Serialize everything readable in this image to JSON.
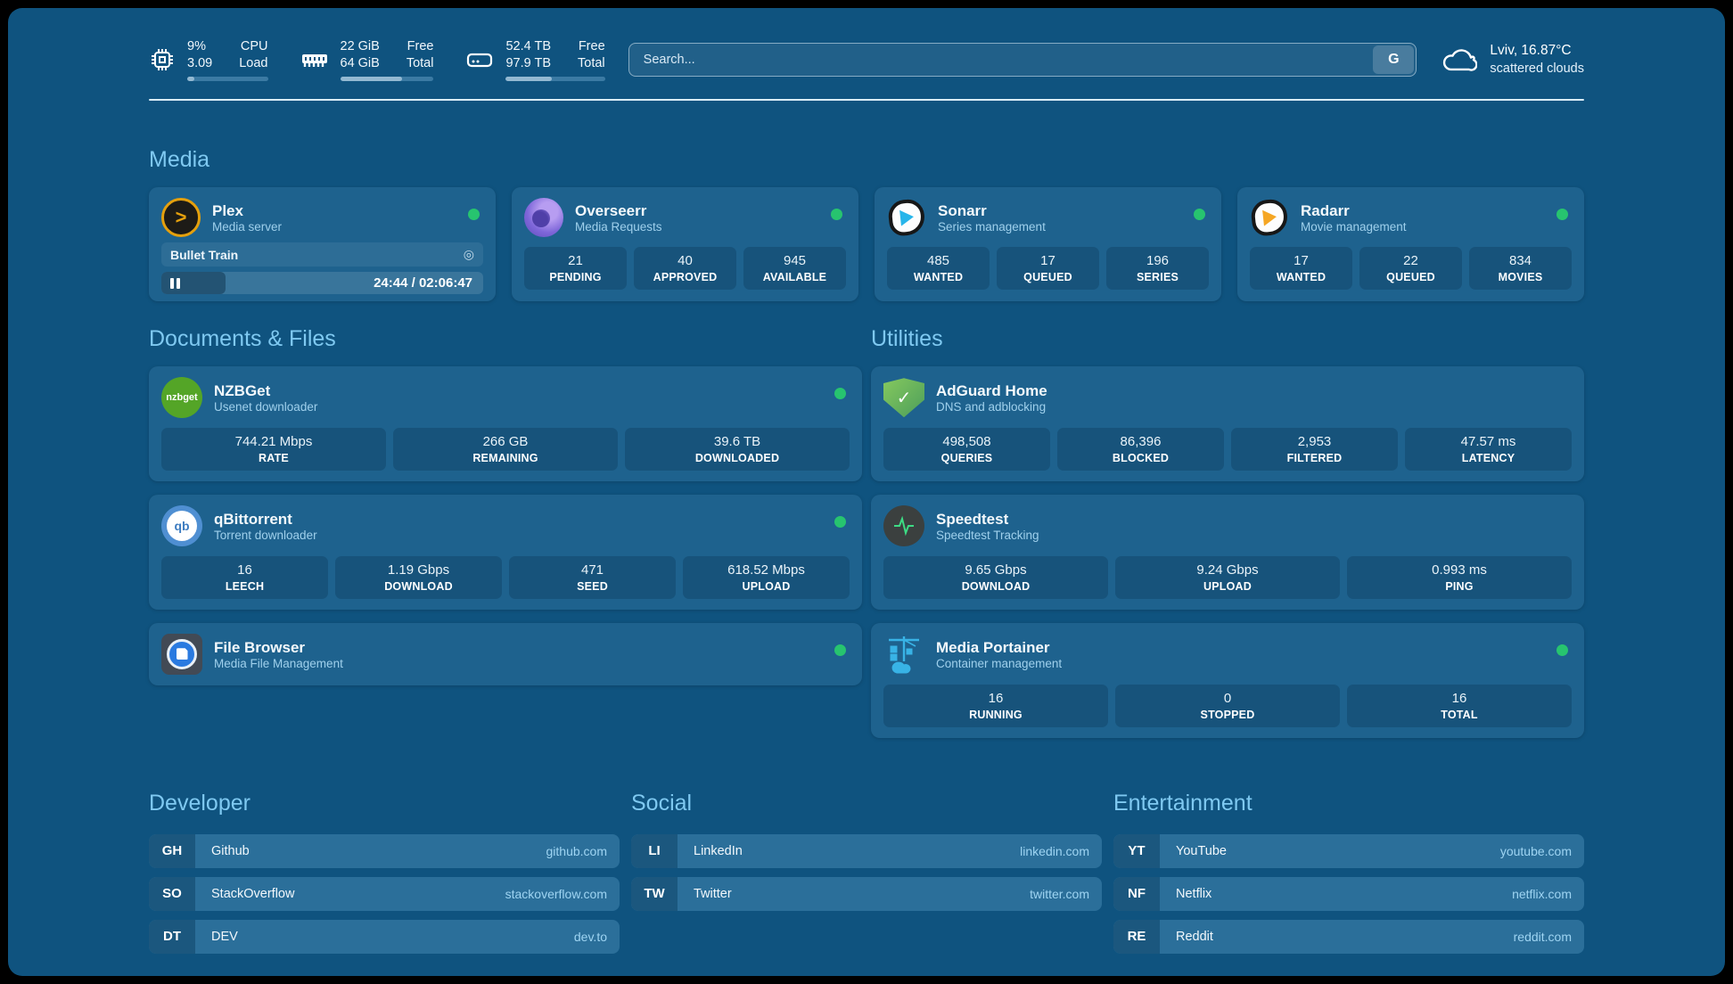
{
  "colors": {
    "background": "#0F537F",
    "card": "#1E628E",
    "status_online": "#27C46F",
    "section_title": "#7FC9F1",
    "link_url": "#9ED4F2"
  },
  "topbar": {
    "cpu": {
      "value1": "9%",
      "value2": "3.09",
      "label1": "CPU",
      "label2": "Load",
      "progress": 9
    },
    "memory": {
      "value1": "22 GiB",
      "value2": "64 GiB",
      "label1": "Free",
      "label2": "Total",
      "progress": 66
    },
    "disk": {
      "value1": "52.4 TB",
      "value2": "97.9 TB",
      "label1": "Free",
      "label2": "Total",
      "progress": 46
    },
    "search": {
      "placeholder": "Search...",
      "engine_button": "G"
    },
    "weather": {
      "location": "Lviv, 16.87°C",
      "condition": "scattered clouds"
    }
  },
  "media": {
    "title": "Media",
    "plex": {
      "name": "Plex",
      "subtitle": "Media server",
      "now_playing": "Bullet Train",
      "elapsed": "24:44",
      "separator": " / ",
      "duration": "02:06:47",
      "progress": 20
    },
    "overseerr": {
      "name": "Overseerr",
      "subtitle": "Media Requests",
      "stats": [
        {
          "value": "21",
          "label": "PENDING"
        },
        {
          "value": "40",
          "label": "APPROVED"
        },
        {
          "value": "945",
          "label": "AVAILABLE"
        }
      ]
    },
    "sonarr": {
      "name": "Sonarr",
      "subtitle": "Series management",
      "stats": [
        {
          "value": "485",
          "label": "WANTED"
        },
        {
          "value": "17",
          "label": "QUEUED"
        },
        {
          "value": "196",
          "label": "SERIES"
        }
      ]
    },
    "radarr": {
      "name": "Radarr",
      "subtitle": "Movie management",
      "stats": [
        {
          "value": "17",
          "label": "WANTED"
        },
        {
          "value": "22",
          "label": "QUEUED"
        },
        {
          "value": "834",
          "label": "MOVIES"
        }
      ]
    }
  },
  "documents": {
    "title": "Documents & Files",
    "nzbget": {
      "name": "NZBGet",
      "subtitle": "Usenet downloader",
      "icon_label": "nzbget",
      "stats": [
        {
          "value": "744.21 Mbps",
          "label": "RATE"
        },
        {
          "value": "266 GB",
          "label": "REMAINING"
        },
        {
          "value": "39.6 TB",
          "label": "DOWNLOADED"
        }
      ]
    },
    "qbittorrent": {
      "name": "qBittorrent",
      "subtitle": "Torrent downloader",
      "icon_label": "qb",
      "stats": [
        {
          "value": "16",
          "label": "LEECH"
        },
        {
          "value": "1.19 Gbps",
          "label": "DOWNLOAD"
        },
        {
          "value": "471",
          "label": "SEED"
        },
        {
          "value": "618.52 Mbps",
          "label": "UPLOAD"
        }
      ]
    },
    "filebrowser": {
      "name": "File Browser",
      "subtitle": "Media File Management"
    }
  },
  "utilities": {
    "title": "Utilities",
    "adguard": {
      "name": "AdGuard Home",
      "subtitle": "DNS and adblocking",
      "stats": [
        {
          "value": "498,508",
          "label": "QUERIES"
        },
        {
          "value": "86,396",
          "label": "BLOCKED"
        },
        {
          "value": "2,953",
          "label": "FILTERED"
        },
        {
          "value": "47.57 ms",
          "label": "LATENCY"
        }
      ]
    },
    "speedtest": {
      "name": "Speedtest",
      "subtitle": "Speedtest Tracking",
      "stats": [
        {
          "value": "9.65 Gbps",
          "label": "DOWNLOAD"
        },
        {
          "value": "9.24 Gbps",
          "label": "UPLOAD"
        },
        {
          "value": "0.993 ms",
          "label": "PING"
        }
      ]
    },
    "portainer": {
      "name": "Media Portainer",
      "subtitle": "Container management",
      "stats": [
        {
          "value": "16",
          "label": "RUNNING"
        },
        {
          "value": "0",
          "label": "STOPPED"
        },
        {
          "value": "16",
          "label": "TOTAL"
        }
      ]
    }
  },
  "links": {
    "developer": {
      "title": "Developer",
      "items": [
        {
          "abbr": "GH",
          "name": "Github",
          "url": "github.com"
        },
        {
          "abbr": "SO",
          "name": "StackOverflow",
          "url": "stackoverflow.com"
        },
        {
          "abbr": "DT",
          "name": "DEV",
          "url": "dev.to"
        }
      ]
    },
    "social": {
      "title": "Social",
      "items": [
        {
          "abbr": "LI",
          "name": "LinkedIn",
          "url": "linkedin.com"
        },
        {
          "abbr": "TW",
          "name": "Twitter",
          "url": "twitter.com"
        }
      ]
    },
    "entertainment": {
      "title": "Entertainment",
      "items": [
        {
          "abbr": "YT",
          "name": "YouTube",
          "url": "youtube.com"
        },
        {
          "abbr": "NF",
          "name": "Netflix",
          "url": "netflix.com"
        },
        {
          "abbr": "RE",
          "name": "Reddit",
          "url": "reddit.com"
        }
      ]
    }
  }
}
